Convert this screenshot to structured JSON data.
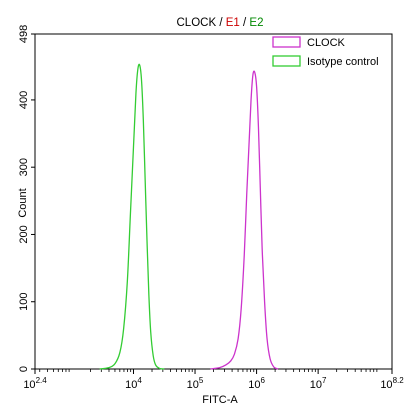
{
  "chart_data": {
    "type": "line",
    "title": [
      {
        "text": "CLOCK",
        "color": "#000000"
      },
      {
        "text": "/",
        "color": "#000000"
      },
      {
        "text": " E1",
        "color": "#cc0000"
      },
      {
        "text": "/",
        "color": "#000000"
      },
      {
        "text": "E2",
        "color": "#008800"
      }
    ],
    "xlabel": "FITC-A",
    "ylabel": "Count",
    "x_scale": "log",
    "xlim_log10": [
      2.4,
      8.2
    ],
    "ylim": [
      0,
      498
    ],
    "x_ticks": [
      {
        "base": "10",
        "exp": "2.4",
        "log10": 2.4
      },
      {
        "base": "10",
        "exp": "4",
        "log10": 4
      },
      {
        "base": "10",
        "exp": "5",
        "log10": 5
      },
      {
        "base": "10",
        "exp": "6",
        "log10": 6
      },
      {
        "base": "10",
        "exp": "7",
        "log10": 7
      },
      {
        "base": "10",
        "exp": "8.2",
        "log10": 8.2
      }
    ],
    "y_ticks": [
      "0",
      "100",
      "200",
      "300",
      "400",
      "498"
    ],
    "legend_position": "top-right",
    "series": [
      {
        "name": "CLOCK",
        "color": "#cc33cc",
        "log10_x": [
          5.25,
          5.4,
          5.5,
          5.58,
          5.64,
          5.7,
          5.75,
          5.8,
          5.84,
          5.88,
          5.91,
          5.94,
          5.97,
          6.0,
          6.03,
          6.06,
          6.09,
          6.13,
          6.17,
          6.22,
          6.28,
          6.35
        ],
        "y": [
          0,
          2,
          6,
          12,
          22,
          45,
          90,
          170,
          260,
          340,
          400,
          437,
          441,
          420,
          360,
          270,
          180,
          100,
          45,
          15,
          3,
          0
        ]
      },
      {
        "name": "Isotype control",
        "color": "#33cc33",
        "log10_x": [
          3.45,
          3.6,
          3.7,
          3.78,
          3.84,
          3.9,
          3.95,
          4.0,
          4.04,
          4.07,
          4.1,
          4.13,
          4.16,
          4.19,
          4.22,
          4.25,
          4.28,
          4.32,
          4.36,
          4.42,
          4.5
        ],
        "y": [
          0,
          2,
          8,
          25,
          60,
          130,
          230,
          330,
          410,
          445,
          452,
          430,
          370,
          280,
          190,
          110,
          55,
          20,
          6,
          1,
          0
        ]
      }
    ]
  }
}
